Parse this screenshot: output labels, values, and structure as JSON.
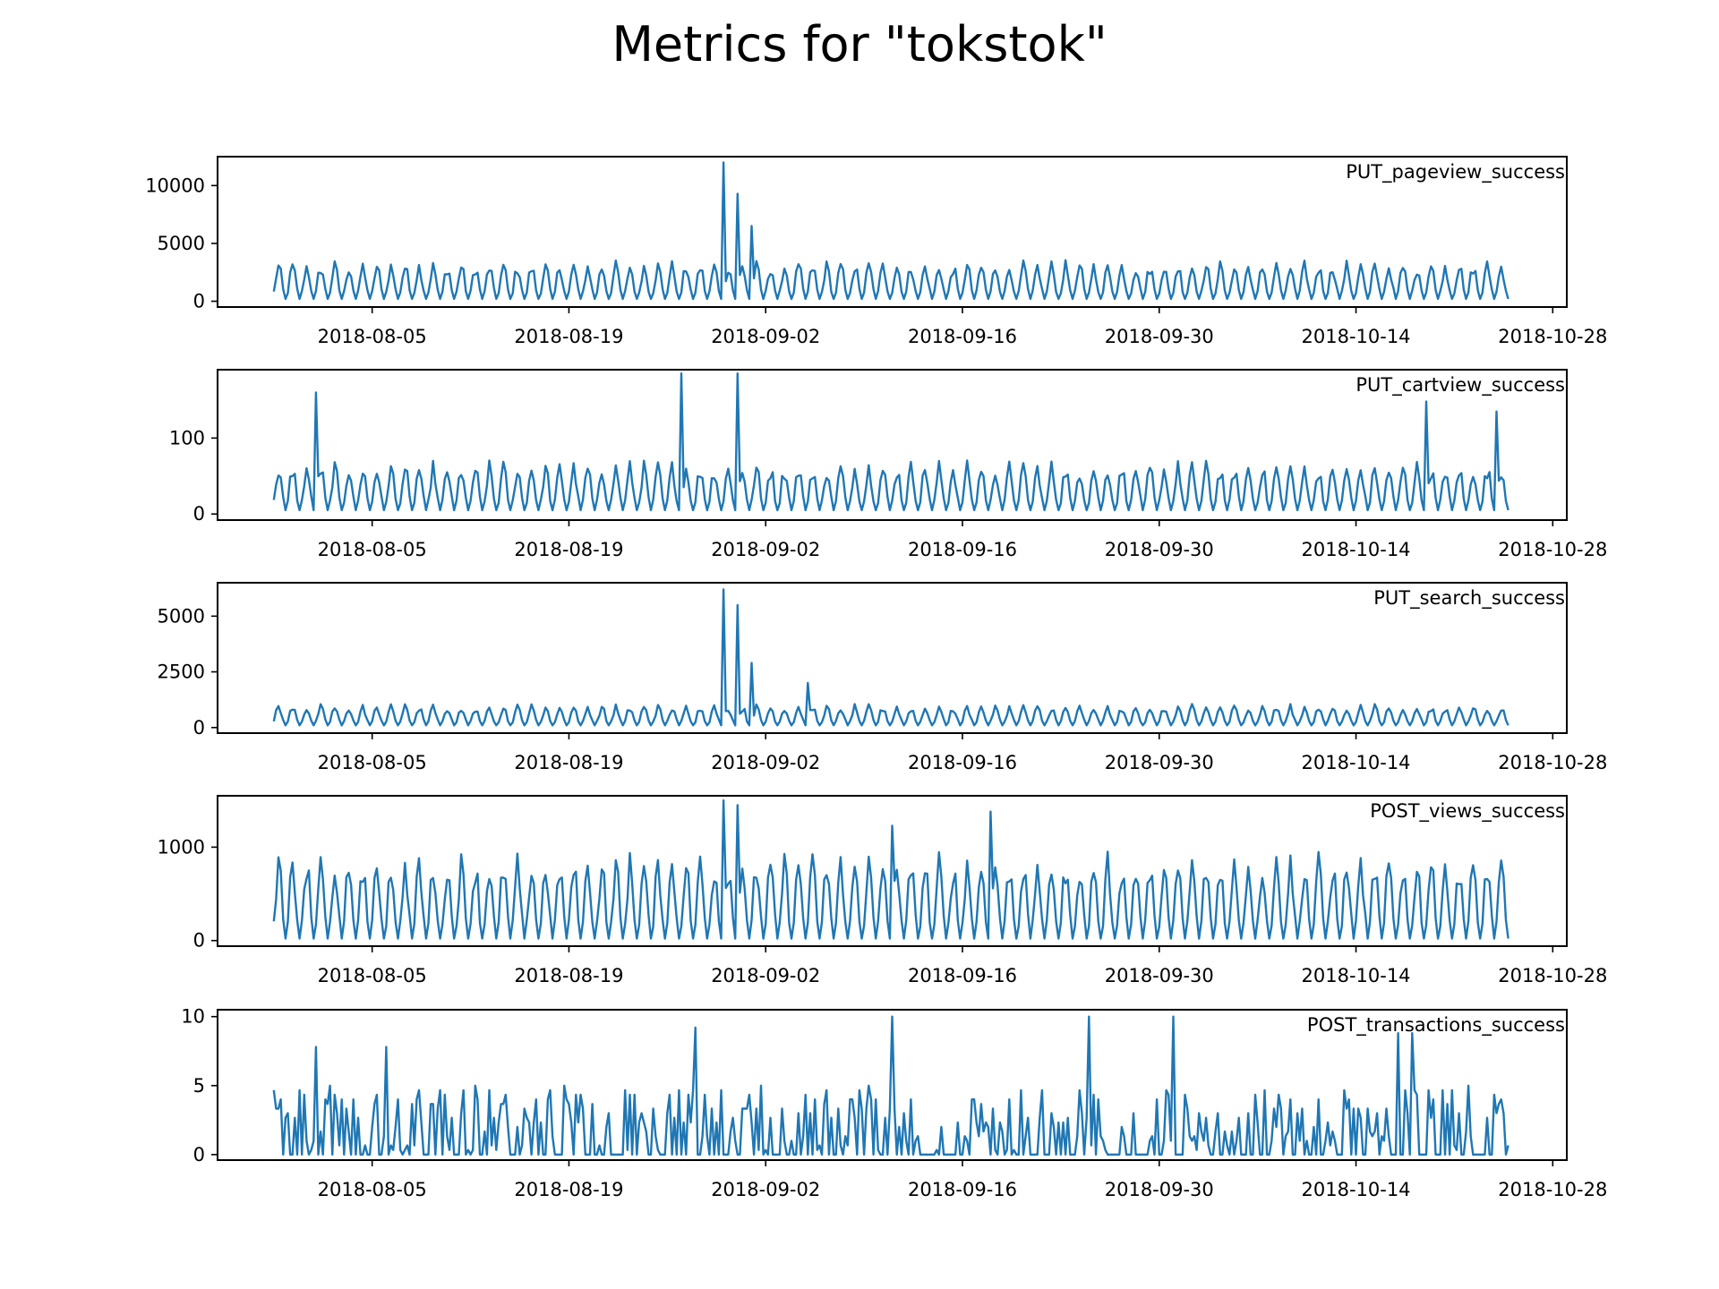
{
  "chart_data": {
    "title": "Metrics for \"tokstok\"",
    "type": "line",
    "series_color": "#1f77b4",
    "x_start": "2018-07-29",
    "x_end": "2018-10-25",
    "xlim": [
      "2018-07-25",
      "2018-10-29"
    ],
    "x_ticks": [
      "2018-08-05",
      "2018-08-19",
      "2018-09-02",
      "2018-09-16",
      "2018-09-30",
      "2018-10-14",
      "2018-10-28"
    ],
    "legend_position": "top-right",
    "grid": false,
    "panels": [
      {
        "label": "PUT_pageview_success",
        "ylim": [
          -500,
          12500
        ],
        "y_ticks": [
          0,
          5000,
          10000
        ],
        "typical_low": 200,
        "typical_high": 3000,
        "spikes": [
          {
            "date": "2018-08-30",
            "value": 12000
          },
          {
            "date": "2018-08-31",
            "value": 9300
          },
          {
            "date": "2018-09-01",
            "value": 6500
          }
        ]
      },
      {
        "label": "PUT_cartview_success",
        "ylim": [
          -8,
          190
        ],
        "y_ticks": [
          0,
          100
        ],
        "typical_low": 5,
        "typical_high": 60,
        "spikes": [
          {
            "date": "2018-08-01",
            "value": 160
          },
          {
            "date": "2018-08-27",
            "value": 185
          },
          {
            "date": "2018-08-31",
            "value": 185
          },
          {
            "date": "2018-10-19",
            "value": 148
          },
          {
            "date": "2018-10-24",
            "value": 135
          }
        ]
      },
      {
        "label": "PUT_search_success",
        "ylim": [
          -250,
          6500
        ],
        "y_ticks": [
          0,
          2500,
          5000
        ],
        "typical_low": 100,
        "typical_high": 900,
        "spikes": [
          {
            "date": "2018-08-30",
            "value": 6200
          },
          {
            "date": "2018-08-31",
            "value": 5500
          },
          {
            "date": "2018-09-01",
            "value": 2900
          },
          {
            "date": "2018-09-05",
            "value": 2000
          }
        ]
      },
      {
        "label": "POST_views_success",
        "ylim": [
          -60,
          1550
        ],
        "y_ticks": [
          0,
          1000
        ],
        "typical_low": 20,
        "typical_high": 800,
        "spikes": [
          {
            "date": "2018-08-30",
            "value": 1500
          },
          {
            "date": "2018-08-31",
            "value": 1450
          },
          {
            "date": "2018-09-18",
            "value": 1380
          },
          {
            "date": "2018-09-11",
            "value": 1230
          }
        ]
      },
      {
        "label": "POST_transactions_success",
        "ylim": [
          -0.4,
          10.5
        ],
        "y_ticks": [
          0,
          5,
          10
        ],
        "typical_low": 0,
        "typical_high": 3.5,
        "spikes": [
          {
            "date": "2018-08-01",
            "value": 7.8
          },
          {
            "date": "2018-08-06",
            "value": 7.8
          },
          {
            "date": "2018-08-28",
            "value": 9.2
          },
          {
            "date": "2018-09-11",
            "value": 10
          },
          {
            "date": "2018-09-25",
            "value": 10
          },
          {
            "date": "2018-10-01",
            "value": 10
          },
          {
            "date": "2018-10-17",
            "value": 8.8
          },
          {
            "date": "2018-10-18",
            "value": 8.8
          }
        ]
      }
    ]
  }
}
